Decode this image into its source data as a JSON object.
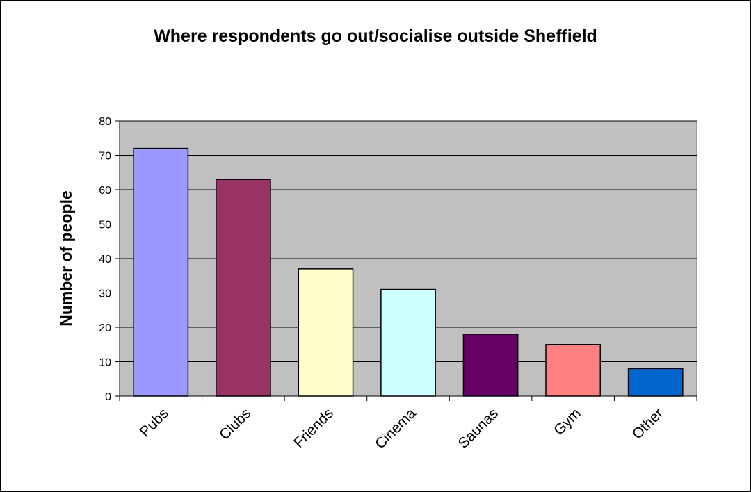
{
  "chart_data": {
    "type": "bar",
    "title": "Where respondents go out/socialise outside Sheffield",
    "xlabel": "",
    "ylabel": "Number of people",
    "categories": [
      "Pubs",
      "Clubs",
      "Friends",
      "Cinema",
      "Saunas",
      "Gym",
      "Other"
    ],
    "values": [
      72,
      63,
      37,
      31,
      18,
      15,
      8
    ],
    "ylim": [
      0,
      80
    ],
    "yticks": [
      0,
      10,
      20,
      30,
      40,
      50,
      60,
      70,
      80
    ],
    "grid": true,
    "legend": "none",
    "colors": [
      "#9999ff",
      "#993366",
      "#ffffcc",
      "#ccffff",
      "#660066",
      "#ff8080",
      "#0066cc"
    ],
    "plot_background": "#c0c0c0"
  }
}
